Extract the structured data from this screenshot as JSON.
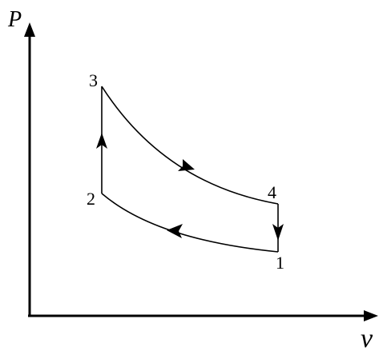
{
  "axes": {
    "y_label": "P",
    "x_label": "v"
  },
  "states": {
    "s1": "1",
    "s2": "2",
    "s3": "3",
    "s4": "4"
  },
  "processes": [
    {
      "from": "1",
      "to": "2",
      "type": "curve",
      "direction": "leftward"
    },
    {
      "from": "2",
      "to": "3",
      "type": "vertical",
      "direction": "upward"
    },
    {
      "from": "3",
      "to": "4",
      "type": "curve",
      "direction": "rightward"
    },
    {
      "from": "4",
      "to": "1",
      "type": "vertical",
      "direction": "downward"
    }
  ],
  "colors": {
    "line": "#000000",
    "background": "#ffffff"
  }
}
